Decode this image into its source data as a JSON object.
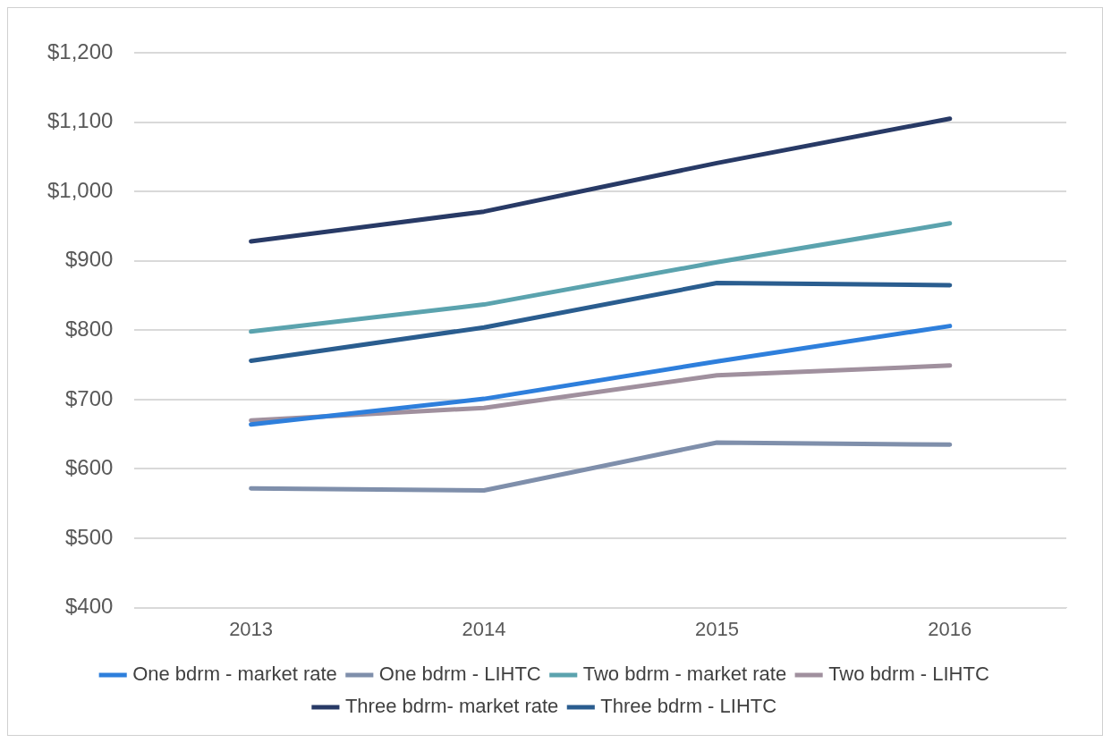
{
  "chart_data": {
    "type": "line",
    "categories": [
      "2013",
      "2014",
      "2015",
      "2016"
    ],
    "series": [
      {
        "name": "One bdrm - market rate",
        "color": "#2e7fdc",
        "values": [
          664,
          701,
          755,
          806
        ]
      },
      {
        "name": "One bdrm - LIHTC",
        "color": "#7f8fab",
        "values": [
          572,
          569,
          638,
          635
        ]
      },
      {
        "name": "Two bdrm - market rate",
        "color": "#5ba3ae",
        "values": [
          798,
          837,
          898,
          954
        ]
      },
      {
        "name": "Two bdrm - LIHTC",
        "color": "#a0909e",
        "values": [
          670,
          688,
          735,
          749
        ]
      },
      {
        "name": "Three bdrm- market rate",
        "color": "#283a66",
        "values": [
          928,
          971,
          1041,
          1105
        ]
      },
      {
        "name": "Three bdrm - LIHTC",
        "color": "#2a5d8f",
        "values": [
          756,
          804,
          868,
          865
        ]
      }
    ],
    "ylim": [
      400,
      1200
    ],
    "yticks": [
      {
        "value": 400,
        "label": "$400"
      },
      {
        "value": 500,
        "label": "$500"
      },
      {
        "value": 600,
        "label": "$600"
      },
      {
        "value": 700,
        "label": "$700"
      },
      {
        "value": 800,
        "label": "$800"
      },
      {
        "value": 900,
        "label": "$900"
      },
      {
        "value": 1000,
        "label": "$1,000"
      },
      {
        "value": 1100,
        "label": "$1,100"
      },
      {
        "value": 1200,
        "label": "$1,200"
      }
    ],
    "grid": "y",
    "legend": "bottom",
    "marker": "none",
    "line_style": "solid"
  }
}
